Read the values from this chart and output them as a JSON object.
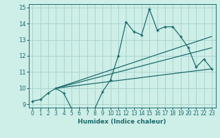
{
  "xlabel": "Humidex (Indice chaleur)",
  "background_color": "#ceeee8",
  "grid_color": "#aad4ce",
  "line_color": "#1a6b6b",
  "xlim": [
    -0.5,
    23.5
  ],
  "ylim": [
    8.8,
    15.2
  ],
  "xticks": [
    0,
    1,
    2,
    3,
    4,
    5,
    6,
    7,
    8,
    9,
    10,
    11,
    12,
    13,
    14,
    15,
    16,
    17,
    18,
    19,
    20,
    21,
    22,
    23
  ],
  "yticks": [
    9,
    10,
    11,
    12,
    13,
    14,
    15
  ],
  "data_x": [
    0,
    1,
    2,
    3,
    4,
    5,
    6,
    7,
    8,
    9,
    10,
    11,
    12,
    13,
    14,
    15,
    16,
    17,
    18,
    19,
    20,
    21,
    22,
    23
  ],
  "data_y": [
    9.2,
    9.3,
    9.7,
    10.0,
    9.7,
    8.75,
    8.75,
    8.75,
    8.75,
    9.8,
    10.5,
    12.0,
    14.1,
    13.5,
    13.3,
    14.9,
    13.6,
    13.8,
    13.8,
    13.2,
    12.5,
    11.3,
    11.8,
    11.2
  ],
  "trend1_x": [
    3,
    23
  ],
  "trend1_y": [
    10.0,
    11.2
  ],
  "trend2_x": [
    3,
    23
  ],
  "trend2_y": [
    10.0,
    12.5
  ],
  "trend3_x": [
    3,
    23
  ],
  "trend3_y": [
    10.0,
    13.2
  ]
}
